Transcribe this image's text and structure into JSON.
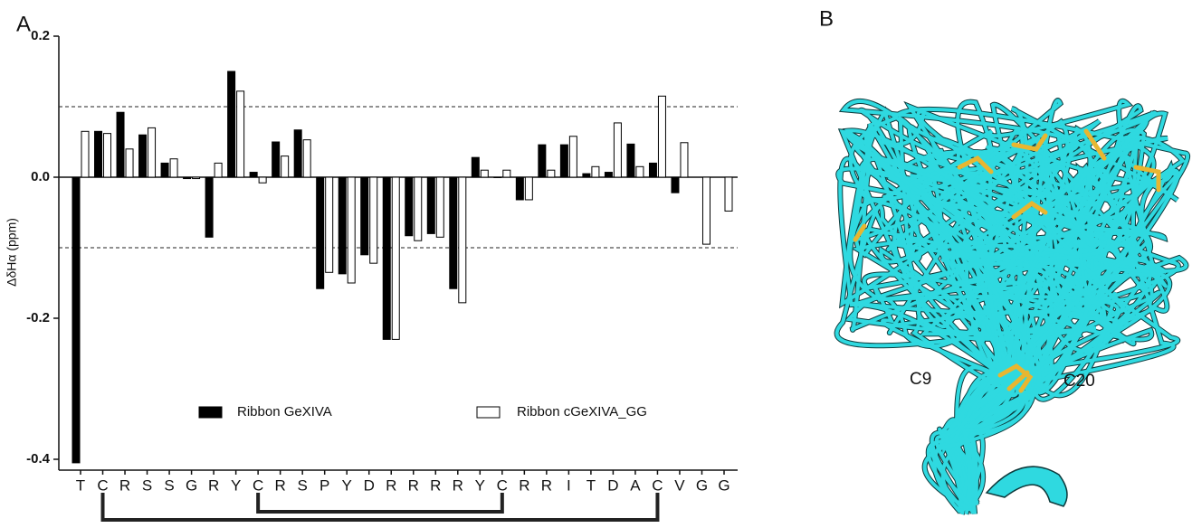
{
  "chart_data": {
    "type": "bar",
    "panel_label": "A",
    "y_label": "ΔδHα (ppm)",
    "categories": [
      "T",
      "C",
      "R",
      "S",
      "S",
      "G",
      "R",
      "Y",
      "C",
      "R",
      "S",
      "P",
      "Y",
      "D",
      "R",
      "R",
      "R",
      "R",
      "Y",
      "C",
      "R",
      "R",
      "I",
      "T",
      "D",
      "A",
      "C",
      "V",
      "G",
      "G"
    ],
    "series": [
      {
        "name": "Ribbon GeXIVA",
        "color": "#000000",
        "values": [
          -0.405,
          0.065,
          0.092,
          0.06,
          0.02,
          -0.002,
          -0.085,
          0.15,
          0.007,
          0.05,
          0.067,
          -0.158,
          -0.137,
          -0.11,
          -0.23,
          -0.083,
          -0.08,
          -0.158,
          0.028,
          0,
          -0.032,
          0.046,
          0.046,
          0.005,
          0.007,
          0.047,
          0.02,
          -0.022,
          null,
          null
        ]
      },
      {
        "name": "Ribbon cGeXIVA_GG",
        "color": "#ffffff",
        "values": [
          0.065,
          0.062,
          0.04,
          0.07,
          0.026,
          -0.002,
          0.02,
          0.122,
          -0.008,
          0.03,
          0.053,
          -0.135,
          -0.15,
          -0.122,
          -0.23,
          -0.09,
          -0.085,
          -0.178,
          0.01,
          0.01,
          -0.032,
          0.01,
          0.058,
          0.015,
          0.077,
          0.015,
          0.115,
          0.049,
          -0.095,
          -0.048
        ]
      }
    ],
    "ylim": [
      -0.4,
      0.2
    ],
    "yticks": [
      -0.4,
      -0.2,
      {
        "value": 0,
        "label": "0.0"
      },
      0.2
    ],
    "hlines": [
      0.1,
      -0.1
    ]
  },
  "structure": {
    "panel_label": "B",
    "annotations": [
      "C9",
      "C20"
    ]
  }
}
